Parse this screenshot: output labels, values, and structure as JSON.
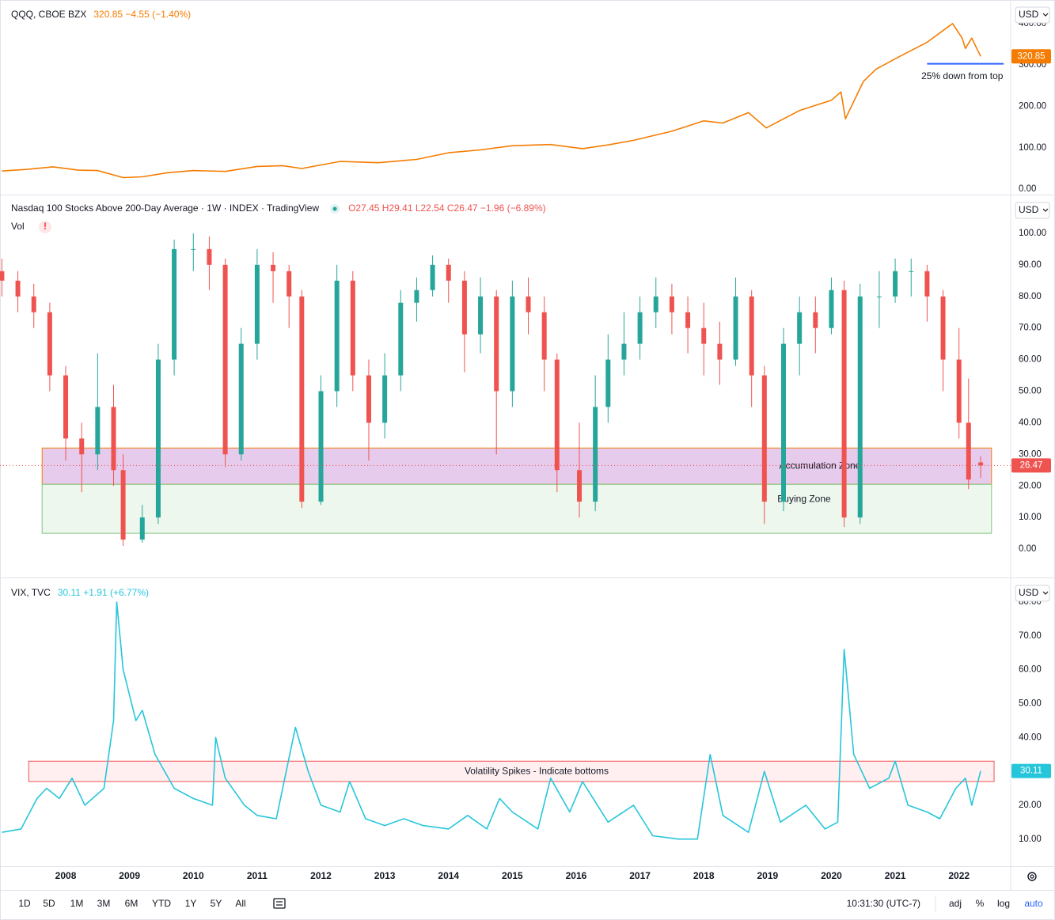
{
  "chart_data": [
    {
      "type": "line",
      "title": "QQQ, CBOE BZX",
      "quote": "320.85 −4.55 (−1.40%)",
      "currency": "USD",
      "color": "#f57c00",
      "xlim": [
        2006.97,
        2022.81
      ],
      "ylim": [
        -13,
        457
      ],
      "yticks": [
        {
          "value": 0,
          "label": "0.00"
        },
        {
          "value": 100,
          "label": "100.00"
        },
        {
          "value": 200,
          "label": "200.00"
        },
        {
          "value": 300,
          "label": "300.00"
        },
        {
          "value": 400,
          "label": "400.00"
        }
      ],
      "x": [
        2007.0,
        2007.4,
        2007.8,
        2008.2,
        2008.5,
        2008.9,
        2009.2,
        2009.6,
        2010.0,
        2010.5,
        2011.0,
        2011.4,
        2011.7,
        2012.3,
        2012.9,
        2013.5,
        2014.0,
        2014.5,
        2015.0,
        2015.6,
        2016.1,
        2016.5,
        2016.9,
        2017.5,
        2018.0,
        2018.3,
        2018.7,
        2018.98,
        2019.5,
        2020.0,
        2020.15,
        2020.22,
        2020.5,
        2020.7,
        2021.0,
        2021.5,
        2021.9,
        2022.05,
        2022.1,
        2022.2,
        2022.34
      ],
      "values": [
        44,
        48,
        54,
        46,
        45,
        28,
        30,
        40,
        45,
        43,
        55,
        57,
        50,
        67,
        64,
        72,
        88,
        95,
        105,
        108,
        98,
        107,
        118,
        140,
        165,
        160,
        185,
        148,
        190,
        215,
        235,
        170,
        260,
        290,
        315,
        355,
        400,
        365,
        340,
        365,
        320.85
      ],
      "lines": [
        {
          "label": "25% down from top",
          "value": 303,
          "x": [
            2021.5,
            2022.7
          ],
          "color": "#2962ff"
        }
      ]
    },
    {
      "type": "candlestick",
      "title": "Nasdaq 100 Stocks Above 200-Day Average · 1W · INDEX · TradingView",
      "quote": "O27.45 H29.41 L22.54 C26.47 −1.96 (−6.89%)",
      "indicator": "Vol",
      "currency": "USD",
      "up_color": "#26a69a",
      "down_color": "#ef5350",
      "xlim": [
        2006.97,
        2022.81
      ],
      "ylim": [
        -9,
        112
      ],
      "yticks": [
        {
          "value": 0,
          "label": "0.00"
        },
        {
          "value": 10,
          "label": "10.00"
        },
        {
          "value": 20,
          "label": "20.00"
        },
        {
          "value": 30,
          "label": "30.00"
        },
        {
          "value": 40,
          "label": "40.00"
        },
        {
          "value": 50,
          "label": "50.00"
        },
        {
          "value": 60,
          "label": "60.00"
        },
        {
          "value": 70,
          "label": "70.00"
        },
        {
          "value": 80,
          "label": "80.00"
        },
        {
          "value": 90,
          "label": "90.00"
        },
        {
          "value": 100,
          "label": "100.00"
        }
      ],
      "x": [
        2007.0,
        2007.25,
        2007.5,
        2007.75,
        2008.0,
        2008.25,
        2008.5,
        2008.75,
        2008.9,
        2009.2,
        2009.45,
        2009.7,
        2010.0,
        2010.25,
        2010.5,
        2010.75,
        2011.0,
        2011.25,
        2011.5,
        2011.7,
        2012.0,
        2012.25,
        2012.5,
        2012.75,
        2013.0,
        2013.25,
        2013.5,
        2013.75,
        2014.0,
        2014.25,
        2014.5,
        2014.75,
        2015.0,
        2015.25,
        2015.5,
        2015.7,
        2016.05,
        2016.3,
        2016.5,
        2016.75,
        2017.0,
        2017.25,
        2017.5,
        2017.75,
        2018.0,
        2018.25,
        2018.5,
        2018.75,
        2018.95,
        2019.25,
        2019.5,
        2019.75,
        2020.0,
        2020.2,
        2020.45,
        2020.75,
        2021.0,
        2021.25,
        2021.5,
        2021.75,
        2022.0,
        2022.15,
        2022.34
      ],
      "open": [
        88,
        85,
        80,
        75,
        55,
        35,
        30,
        45,
        25,
        3,
        10,
        60,
        95,
        95,
        90,
        30,
        65,
        90,
        88,
        80,
        15,
        50,
        85,
        55,
        40,
        55,
        78,
        82,
        90,
        85,
        68,
        80,
        50,
        80,
        75,
        60,
        25,
        15,
        45,
        60,
        65,
        75,
        80,
        75,
        70,
        65,
        60,
        80,
        55,
        15,
        65,
        75,
        70,
        82,
        10,
        80,
        80,
        88,
        88,
        80,
        60,
        40,
        27.45
      ],
      "high": [
        92,
        88,
        84,
        78,
        58,
        40,
        62,
        52,
        30,
        14,
        65,
        98,
        100,
        99,
        92,
        70,
        95,
        94,
        90,
        82,
        55,
        90,
        88,
        60,
        62,
        82,
        86,
        93,
        92,
        88,
        86,
        82,
        85,
        86,
        80,
        62,
        40,
        55,
        68,
        75,
        80,
        86,
        84,
        80,
        78,
        72,
        86,
        82,
        58,
        70,
        80,
        80,
        86,
        85,
        84,
        88,
        92,
        92,
        90,
        82,
        70,
        54,
        29.41
      ],
      "low": [
        80,
        75,
        70,
        50,
        28,
        18,
        25,
        20,
        1,
        2,
        8,
        55,
        88,
        82,
        26,
        28,
        60,
        78,
        70,
        13,
        14,
        45,
        50,
        28,
        35,
        50,
        72,
        80,
        78,
        56,
        62,
        30,
        45,
        68,
        50,
        18,
        10,
        12,
        40,
        55,
        60,
        70,
        68,
        62,
        55,
        52,
        58,
        45,
        8,
        12,
        55,
        62,
        68,
        7,
        8,
        70,
        78,
        80,
        72,
        50,
        35,
        19,
        22.54
      ],
      "close": [
        85,
        80,
        75,
        55,
        35,
        30,
        45,
        25,
        3,
        10,
        60,
        95,
        95,
        90,
        30,
        65,
        90,
        88,
        80,
        15,
        50,
        85,
        55,
        40,
        55,
        78,
        82,
        90,
        85,
        68,
        80,
        50,
        80,
        75,
        60,
        25,
        15,
        45,
        60,
        65,
        75,
        80,
        75,
        70,
        65,
        60,
        80,
        55,
        15,
        65,
        75,
        70,
        82,
        10,
        80,
        80,
        88,
        88,
        80,
        60,
        40,
        22,
        26.47
      ],
      "bands": [
        {
          "label": "Accumulation Zone",
          "x": [
            2007.63,
            2022.51
          ],
          "y": [
            20.5,
            32
          ],
          "color": "#e1bee7",
          "border": "#f57c00"
        },
        {
          "label": "Buying Zone",
          "x": [
            2007.63,
            2022.51
          ],
          "y": [
            5,
            20.5
          ],
          "color": "#e8f5e9",
          "border": "#81c784"
        }
      ]
    },
    {
      "type": "line",
      "title": "VIX, TVC",
      "quote": "30.11 +1.91 (+6.77%)",
      "currency": "USD",
      "color": "#26c6da",
      "xlim": [
        2006.97,
        2022.81
      ],
      "ylim": [
        2,
        87
      ],
      "yticks": [
        {
          "value": 10,
          "label": "10.00"
        },
        {
          "value": 20,
          "label": "20.00"
        },
        {
          "value": 30,
          "label": "30.00"
        },
        {
          "value": 40,
          "label": "40.00"
        },
        {
          "value": 50,
          "label": "50.00"
        },
        {
          "value": 60,
          "label": "60.00"
        },
        {
          "value": 70,
          "label": "70.00"
        },
        {
          "value": 80,
          "label": "80.00"
        }
      ],
      "xticks": [
        2008,
        2009,
        2010,
        2011,
        2012,
        2013,
        2014,
        2015,
        2016,
        2017,
        2018,
        2019,
        2020,
        2021,
        2022
      ],
      "x": [
        2007.0,
        2007.3,
        2007.55,
        2007.7,
        2007.9,
        2008.1,
        2008.3,
        2008.6,
        2008.75,
        2008.8,
        2008.9,
        2009.1,
        2009.2,
        2009.4,
        2009.7,
        2010.0,
        2010.3,
        2010.35,
        2010.5,
        2010.8,
        2011.0,
        2011.3,
        2011.6,
        2011.8,
        2012.0,
        2012.3,
        2012.45,
        2012.7,
        2013.0,
        2013.3,
        2013.6,
        2014.0,
        2014.3,
        2014.6,
        2014.8,
        2015.0,
        2015.4,
        2015.6,
        2015.9,
        2016.1,
        2016.5,
        2016.9,
        2017.2,
        2017.6,
        2017.9,
        2018.1,
        2018.3,
        2018.7,
        2018.95,
        2019.2,
        2019.6,
        2019.9,
        2020.1,
        2020.2,
        2020.35,
        2020.6,
        2020.9,
        2021.0,
        2021.2,
        2021.5,
        2021.7,
        2021.95,
        2022.1,
        2022.2,
        2022.34
      ],
      "values": [
        12,
        13,
        22,
        25,
        22,
        28,
        20,
        25,
        45,
        80,
        60,
        45,
        48,
        35,
        25,
        22,
        20,
        40,
        28,
        20,
        17,
        16,
        43,
        30,
        20,
        18,
        27,
        16,
        14,
        16,
        14,
        13,
        17,
        13,
        22,
        18,
        13,
        28,
        18,
        27,
        15,
        20,
        11,
        10,
        10,
        35,
        17,
        12,
        30,
        15,
        20,
        13,
        15,
        66,
        35,
        25,
        28,
        33,
        20,
        18,
        16,
        25,
        28,
        20,
        30.11
      ],
      "bands": [
        {
          "label": "Volatility Spikes - Indicate bottoms",
          "x": [
            2007.42,
            2022.55
          ],
          "y": [
            27,
            33
          ],
          "color": "#ffebee",
          "border": "#ef5350"
        }
      ]
    }
  ],
  "toolbar": {
    "ranges": [
      "1D",
      "5D",
      "1M",
      "3M",
      "6M",
      "YTD",
      "1Y",
      "5Y",
      "All"
    ],
    "time": "10:31:30 (UTC-7)",
    "options": [
      "adj",
      "%",
      "log",
      "auto"
    ]
  }
}
